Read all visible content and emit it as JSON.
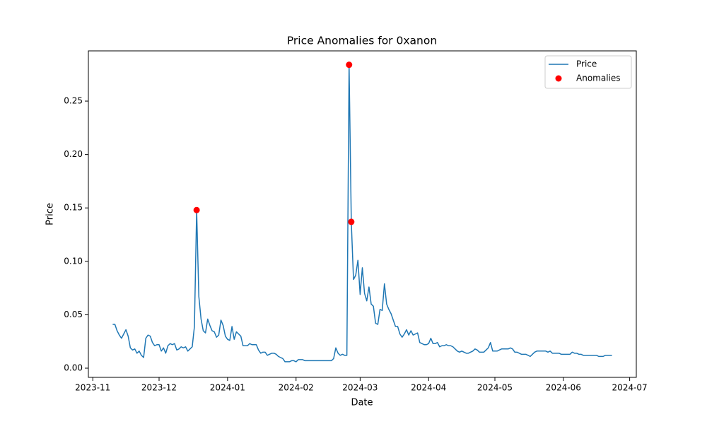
{
  "chart_data": {
    "type": "line",
    "title": "Price Anomalies for 0xanon",
    "x_label": "Date",
    "y_label": "Price",
    "legend": "upper right",
    "grid": false,
    "xlim": [
      "2023-10-30",
      "2024-07-04"
    ],
    "xticks": [
      "2023-11",
      "2023-12",
      "2024-01",
      "2024-02",
      "2024-03",
      "2024-04",
      "2024-05",
      "2024-06",
      "2024-07"
    ],
    "ylim": [
      -0.0086,
      0.297
    ],
    "yticks": [
      {
        "value": 0,
        "label": "0.00"
      },
      0.05,
      {
        "value": 0.1,
        "label": "0.10"
      },
      0.15,
      {
        "value": 0.2,
        "label": "0.20"
      },
      0.25
    ],
    "series": [
      {
        "name": "Price",
        "color": "#1f77b4",
        "type": "line",
        "x": [
          "2023-11-10",
          "2023-11-11",
          "2023-11-12",
          "2023-11-13",
          "2023-11-14",
          "2023-11-15",
          "2023-11-16",
          "2023-11-17",
          "2023-11-18",
          "2023-11-19",
          "2023-11-20",
          "2023-11-21",
          "2023-11-22",
          "2023-11-23",
          "2023-11-24",
          "2023-11-25",
          "2023-11-26",
          "2023-11-27",
          "2023-11-28",
          "2023-11-29",
          "2023-11-30",
          "2023-12-01",
          "2023-12-02",
          "2023-12-03",
          "2023-12-04",
          "2023-12-05",
          "2023-12-06",
          "2023-12-07",
          "2023-12-08",
          "2023-12-09",
          "2023-12-10",
          "2023-12-11",
          "2023-12-12",
          "2023-12-13",
          "2023-12-14",
          "2023-12-15",
          "2023-12-16",
          "2023-12-17",
          "2023-12-18",
          "2023-12-19",
          "2023-12-20",
          "2023-12-21",
          "2023-12-22",
          "2023-12-23",
          "2023-12-24",
          "2023-12-25",
          "2023-12-26",
          "2023-12-27",
          "2023-12-28",
          "2023-12-29",
          "2023-12-30",
          "2023-12-31",
          "2024-01-01",
          "2024-01-02",
          "2024-01-03",
          "2024-01-04",
          "2024-01-05",
          "2024-01-06",
          "2024-01-07",
          "2024-01-08",
          "2024-01-09",
          "2024-01-10",
          "2024-01-11",
          "2024-01-12",
          "2024-01-13",
          "2024-01-14",
          "2024-01-15",
          "2024-01-16",
          "2024-01-17",
          "2024-01-18",
          "2024-01-19",
          "2024-01-20",
          "2024-01-21",
          "2024-01-22",
          "2024-01-23",
          "2024-01-24",
          "2024-01-25",
          "2024-01-26",
          "2024-01-27",
          "2024-01-28",
          "2024-01-29",
          "2024-01-30",
          "2024-01-31",
          "2024-02-01",
          "2024-02-02",
          "2024-02-03",
          "2024-02-04",
          "2024-02-05",
          "2024-02-06",
          "2024-02-07",
          "2024-02-08",
          "2024-02-09",
          "2024-02-10",
          "2024-02-11",
          "2024-02-12",
          "2024-02-13",
          "2024-02-14",
          "2024-02-15",
          "2024-02-16",
          "2024-02-17",
          "2024-02-18",
          "2024-02-19",
          "2024-02-20",
          "2024-02-21",
          "2024-02-22",
          "2024-02-23",
          "2024-02-24",
          "2024-02-25",
          "2024-02-26",
          "2024-02-27",
          "2024-02-28",
          "2024-02-29",
          "2024-03-01",
          "2024-03-02",
          "2024-03-03",
          "2024-03-04",
          "2024-03-05",
          "2024-03-06",
          "2024-03-07",
          "2024-03-08",
          "2024-03-09",
          "2024-03-10",
          "2024-03-11",
          "2024-03-12",
          "2024-03-13",
          "2024-03-14",
          "2024-03-15",
          "2024-03-16",
          "2024-03-17",
          "2024-03-18",
          "2024-03-19",
          "2024-03-20",
          "2024-03-21",
          "2024-03-22",
          "2024-03-23",
          "2024-03-24",
          "2024-03-25",
          "2024-03-26",
          "2024-03-27",
          "2024-03-28",
          "2024-03-29",
          "2024-03-30",
          "2024-03-31",
          "2024-04-01",
          "2024-04-02",
          "2024-04-03",
          "2024-04-04",
          "2024-04-05",
          "2024-04-06",
          "2024-04-07",
          "2024-04-08",
          "2024-04-09",
          "2024-04-10",
          "2024-04-11",
          "2024-04-12",
          "2024-04-13",
          "2024-04-14",
          "2024-04-15",
          "2024-04-16",
          "2024-04-17",
          "2024-04-18",
          "2024-04-19",
          "2024-04-20",
          "2024-04-21",
          "2024-04-22",
          "2024-04-23",
          "2024-04-24",
          "2024-04-25",
          "2024-04-26",
          "2024-04-27",
          "2024-04-28",
          "2024-04-29",
          "2024-04-30",
          "2024-05-01",
          "2024-05-02",
          "2024-05-03",
          "2024-05-04",
          "2024-05-05",
          "2024-05-06",
          "2024-05-07",
          "2024-05-08",
          "2024-05-09",
          "2024-05-10",
          "2024-05-11",
          "2024-05-12",
          "2024-05-13",
          "2024-05-14",
          "2024-05-15",
          "2024-05-16",
          "2024-05-17",
          "2024-05-18",
          "2024-05-19",
          "2024-05-20",
          "2024-05-21",
          "2024-05-22",
          "2024-05-23",
          "2024-05-24",
          "2024-05-25",
          "2024-05-26",
          "2024-05-27",
          "2024-05-28",
          "2024-05-29",
          "2024-05-30",
          "2024-05-31",
          "2024-06-01",
          "2024-06-02",
          "2024-06-03",
          "2024-06-04",
          "2024-06-05",
          "2024-06-06",
          "2024-06-07",
          "2024-06-08",
          "2024-06-09",
          "2024-06-10",
          "2024-06-11",
          "2024-06-12",
          "2024-06-13",
          "2024-06-14",
          "2024-06-15",
          "2024-06-16",
          "2024-06-17",
          "2024-06-18",
          "2024-06-19",
          "2024-06-20",
          "2024-06-21",
          "2024-06-22",
          "2024-06-23"
        ],
        "values": [
          0.041,
          0.041,
          0.035,
          0.031,
          0.028,
          0.032,
          0.036,
          0.03,
          0.019,
          0.017,
          0.018,
          0.014,
          0.016,
          0.012,
          0.01,
          0.028,
          0.031,
          0.03,
          0.024,
          0.021,
          0.022,
          0.022,
          0.016,
          0.019,
          0.014,
          0.021,
          0.023,
          0.022,
          0.023,
          0.017,
          0.018,
          0.02,
          0.019,
          0.02,
          0.016,
          0.018,
          0.02,
          0.039,
          0.148,
          0.067,
          0.046,
          0.035,
          0.033,
          0.046,
          0.04,
          0.035,
          0.034,
          0.029,
          0.031,
          0.045,
          0.04,
          0.03,
          0.027,
          0.026,
          0.039,
          0.027,
          0.034,
          0.032,
          0.03,
          0.021,
          0.021,
          0.021,
          0.023,
          0.022,
          0.022,
          0.022,
          0.017,
          0.014,
          0.015,
          0.015,
          0.012,
          0.013,
          0.014,
          0.014,
          0.013,
          0.011,
          0.01,
          0.009,
          0.006,
          0.006,
          0.006,
          0.007,
          0.007,
          0.006,
          0.008,
          0.008,
          0.008,
          0.007,
          0.007,
          0.007,
          0.007,
          0.007,
          0.007,
          0.007,
          0.007,
          0.007,
          0.007,
          0.007,
          0.007,
          0.007,
          0.009,
          0.019,
          0.014,
          0.012,
          0.013,
          0.012,
          0.012,
          0.284,
          0.137,
          0.083,
          0.087,
          0.101,
          0.069,
          0.094,
          0.07,
          0.063,
          0.076,
          0.06,
          0.058,
          0.042,
          0.041,
          0.055,
          0.054,
          0.079,
          0.06,
          0.055,
          0.051,
          0.045,
          0.039,
          0.039,
          0.032,
          0.029,
          0.032,
          0.036,
          0.031,
          0.035,
          0.031,
          0.032,
          0.033,
          0.024,
          0.023,
          0.022,
          0.022,
          0.023,
          0.028,
          0.023,
          0.023,
          0.024,
          0.02,
          0.021,
          0.021,
          0.022,
          0.021,
          0.021,
          0.02,
          0.018,
          0.016,
          0.015,
          0.016,
          0.015,
          0.014,
          0.014,
          0.015,
          0.016,
          0.018,
          0.017,
          0.015,
          0.015,
          0.015,
          0.017,
          0.019,
          0.024,
          0.016,
          0.016,
          0.016,
          0.017,
          0.018,
          0.018,
          0.018,
          0.018,
          0.019,
          0.018,
          0.015,
          0.015,
          0.014,
          0.013,
          0.013,
          0.013,
          0.012,
          0.011,
          0.013,
          0.015,
          0.016,
          0.016,
          0.016,
          0.016,
          0.016,
          0.015,
          0.016,
          0.014,
          0.014,
          0.014,
          0.014,
          0.013,
          0.013,
          0.013,
          0.013,
          0.013,
          0.015,
          0.014,
          0.014,
          0.013,
          0.013,
          0.012,
          0.012,
          0.012,
          0.012,
          0.012,
          0.012,
          0.012,
          0.011,
          0.011,
          0.011,
          0.012,
          0.012,
          0.012,
          0.012
        ]
      },
      {
        "name": "Anomalies",
        "color": "#ff0000",
        "type": "scatter",
        "x": [
          "2023-12-18",
          "2024-02-25",
          "2024-02-26"
        ],
        "values": [
          0.148,
          0.284,
          0.137
        ]
      }
    ]
  }
}
